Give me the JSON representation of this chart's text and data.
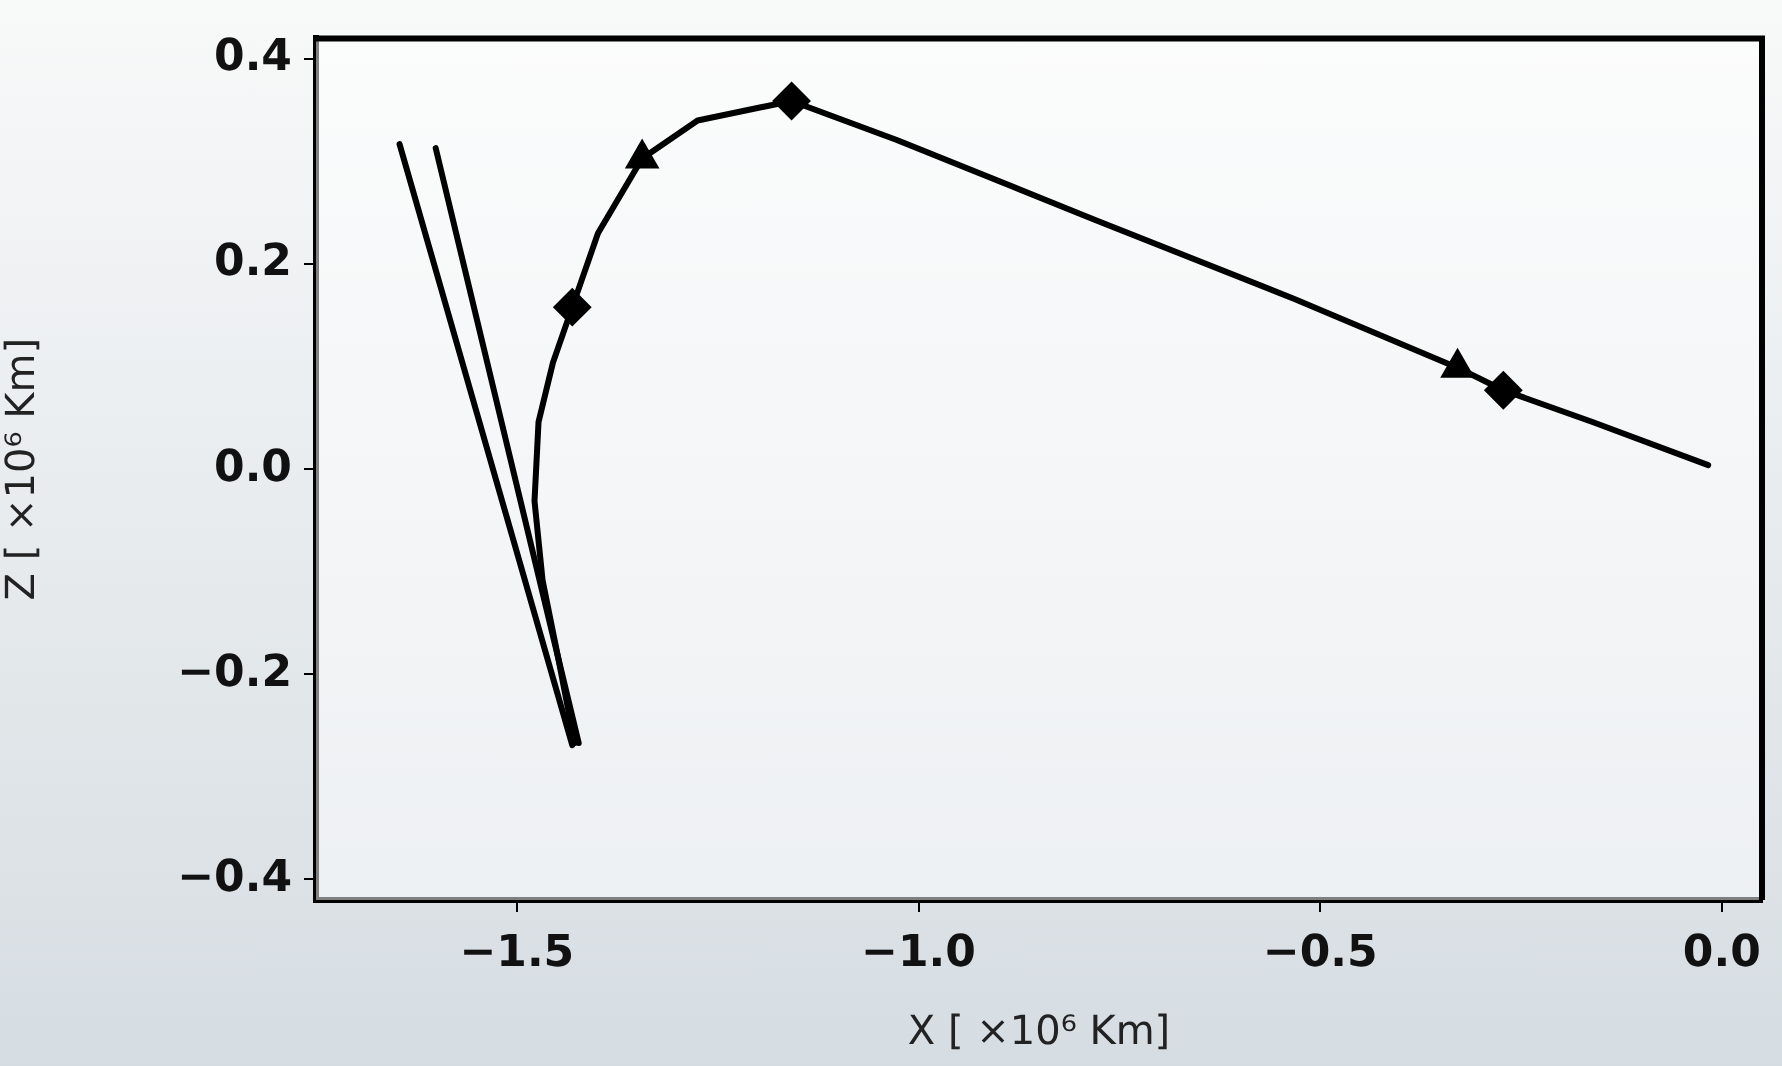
{
  "chart_data": {
    "type": "line",
    "xlabel": "X [ ×10⁶ Km]",
    "ylabel": "Z [ ×10⁶ Km]",
    "xlim": [
      -1.75,
      0.05
    ],
    "xticks": [
      {
        "value": -1.5,
        "label": "−1.5"
      },
      {
        "value": -1.0,
        "label": "−1.0"
      },
      {
        "value": -0.5,
        "label": "−0.5"
      },
      {
        "value": 0.0,
        "label": "0.0"
      }
    ],
    "ylim": [
      -0.42,
      0.42
    ],
    "yticks": [
      {
        "value": -0.4,
        "label": "−0.4"
      },
      {
        "value": -0.2,
        "label": "−0.2"
      },
      {
        "value": 0.0,
        "label": "0.0"
      },
      {
        "value": 0.2,
        "label": "0.2"
      },
      {
        "value": 0.4,
        "label": "0.4"
      }
    ],
    "grid": false,
    "legend": false,
    "series": [
      {
        "color": "#000000",
        "marker": "none",
        "x": [
          -1.428,
          -1.448,
          -1.468,
          -1.478,
          -1.473,
          -1.455,
          -1.431,
          -1.399,
          -1.344,
          -1.275,
          -1.158,
          -1.027,
          -0.78,
          -0.532,
          -0.329,
          -0.272,
          -0.161,
          -0.017
        ],
        "values": [
          -0.267,
          -0.186,
          -0.108,
          -0.031,
          0.046,
          0.104,
          0.158,
          0.23,
          0.303,
          0.34,
          0.359,
          0.321,
          0.243,
          0.166,
          0.099,
          0.077,
          0.046,
          0.004
        ]
      },
      {
        "color": "#000000",
        "marker": "none",
        "x": [
          -1.646,
          -1.431
        ],
        "values": [
          0.317,
          -0.269
        ]
      },
      {
        "color": "#000000",
        "marker": "none",
        "x": [
          -1.601,
          -1.423
        ],
        "values": [
          0.313,
          -0.267
        ]
      },
      {
        "type": "scatter",
        "color": "#000000",
        "marker": "diamond",
        "x": [
          -1.431,
          -1.158,
          -0.272
        ],
        "values": [
          0.158,
          0.359,
          0.077
        ]
      },
      {
        "type": "scatter",
        "color": "#000000",
        "marker": "triangle",
        "x": [
          -1.344,
          -0.329
        ],
        "values": [
          0.303,
          0.099
        ]
      }
    ]
  }
}
